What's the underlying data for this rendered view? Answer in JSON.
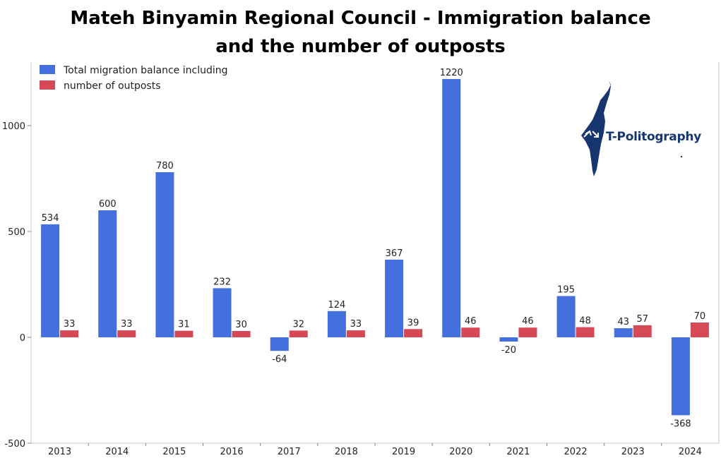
{
  "title_line1": "Mateh Binyamin Regional Council - Immigration balance",
  "title_line2": "and the number of outposts",
  "logo_text": "T-Politography",
  "colors": {
    "series1": "#4470dd",
    "series2": "#d64a58",
    "grid": "#c9c9c9"
  },
  "chart_data": {
    "type": "bar",
    "title": "Mateh Binyamin Regional Council - Immigration balance and the number of outposts",
    "categories": [
      "2013",
      "2014",
      "2015",
      "2016",
      "2017",
      "2018",
      "2019",
      "2020",
      "2021",
      "2022",
      "2023",
      "2024"
    ],
    "series": [
      {
        "name": "Total migration balance including",
        "values": [
          534,
          600,
          780,
          232,
          -64,
          124,
          367,
          1220,
          -20,
          195,
          43,
          -368
        ]
      },
      {
        "name": "number of outposts",
        "values": [
          33,
          33,
          31,
          30,
          32,
          33,
          39,
          46,
          46,
          48,
          57,
          70
        ]
      }
    ],
    "ylim": [
      -500,
      1300
    ],
    "yticks": [
      -500,
      0,
      500,
      1000
    ],
    "legend": "top-left",
    "grid": false
  }
}
